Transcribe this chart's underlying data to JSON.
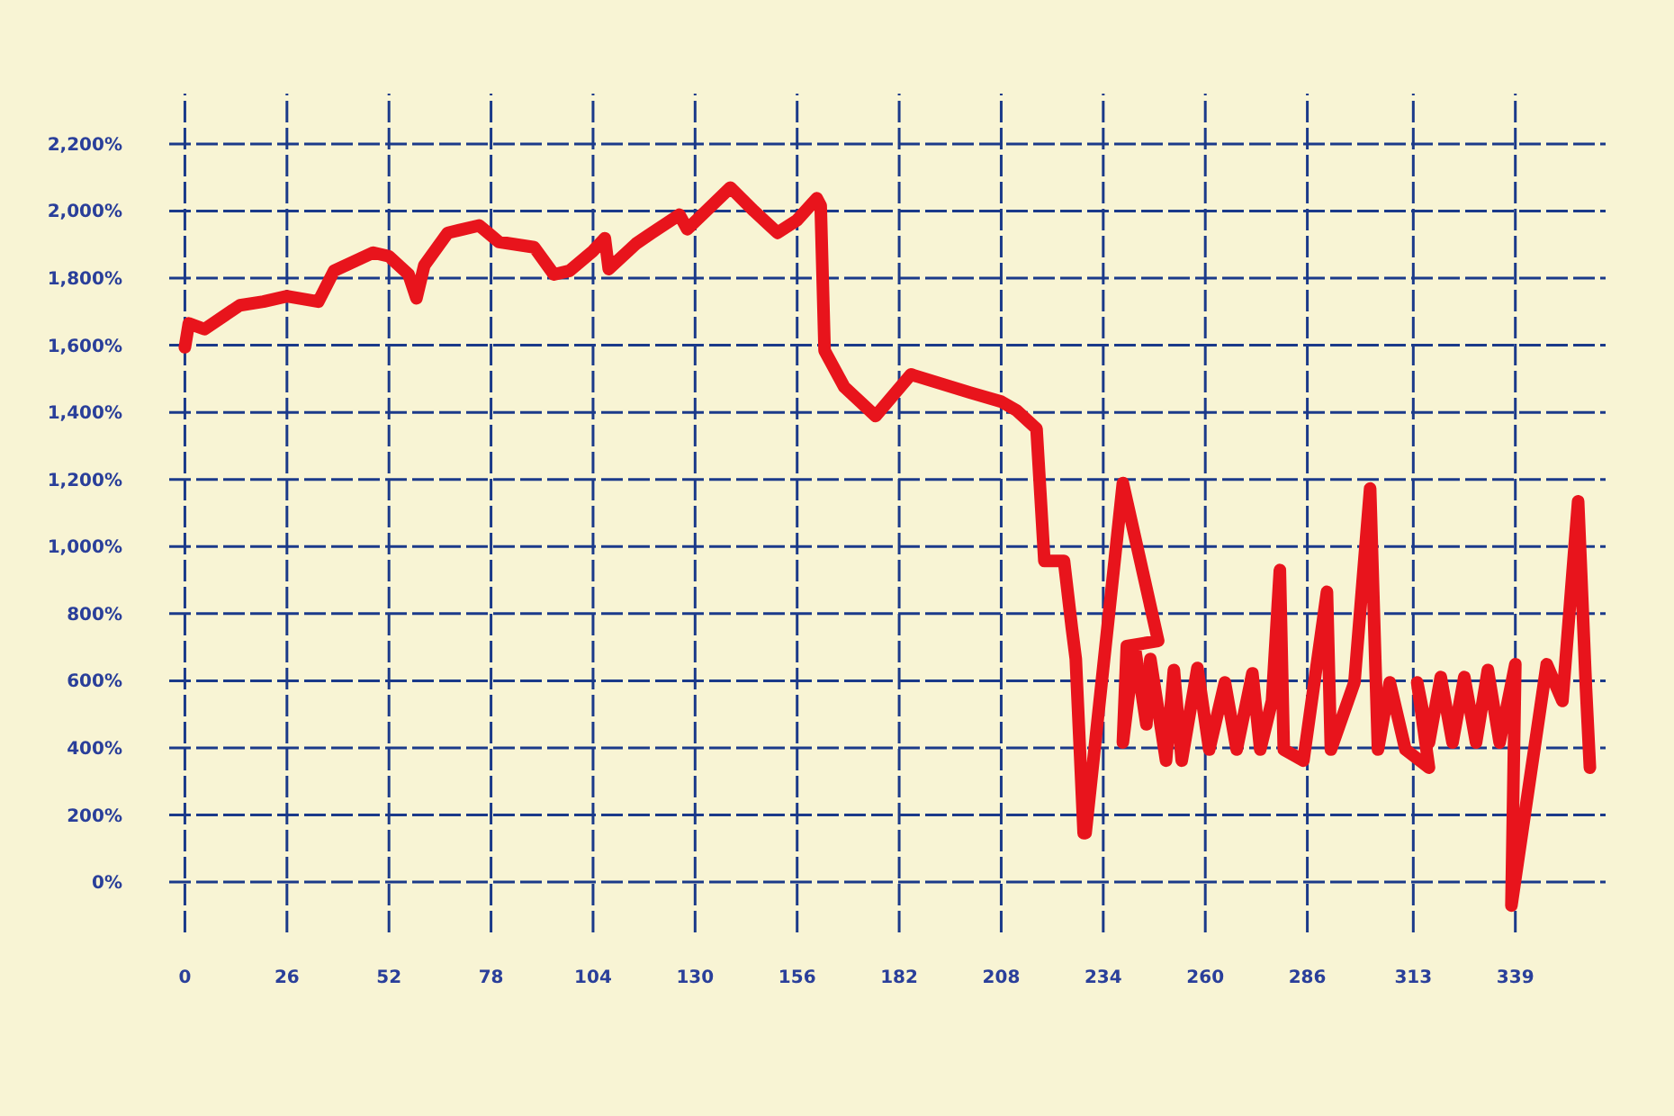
{
  "chart_data": {
    "type": "line",
    "grid": true,
    "line_style": "solid",
    "marker": "none",
    "xlim": [
      -4,
      362
    ],
    "ylim": [
      -150,
      2350
    ],
    "xticks": [
      0,
      26,
      52,
      78,
      104,
      130,
      156,
      182,
      208,
      234,
      260,
      286,
      313,
      339
    ],
    "yticks": [
      {
        "value": 0,
        "label": "0%"
      },
      {
        "value": 200,
        "label": "200%"
      },
      {
        "value": 400,
        "label": "400%"
      },
      {
        "value": 600,
        "label": "600%"
      },
      {
        "value": 800,
        "label": "800%"
      },
      {
        "value": 1000,
        "label": "1,000%"
      },
      {
        "value": 1200,
        "label": "1,200%"
      },
      {
        "value": 1400,
        "label": "1,400%"
      },
      {
        "value": 1600,
        "label": "1,600%"
      },
      {
        "value": 1800,
        "label": "1,800%"
      },
      {
        "value": 2000,
        "label": "2,000%"
      },
      {
        "value": 2200,
        "label": "2,200%"
      }
    ],
    "series": [
      {
        "color": "#e8141c",
        "x": [
          0,
          1,
          5,
          14,
          20,
          26,
          34,
          38,
          48,
          52,
          57,
          59,
          61,
          67,
          75,
          80,
          89,
          94,
          98,
          104,
          107,
          108,
          115,
          119,
          126,
          128,
          139,
          145,
          151,
          156,
          161,
          162,
          163,
          168,
          176,
          185,
          200,
          208,
          212,
          217,
          219,
          224,
          226,
          227,
          229,
          229.5,
          239,
          248,
          240,
          239,
          242,
          245,
          246,
          250,
          252,
          254,
          258,
          261,
          265,
          268,
          272,
          274,
          277,
          279,
          280,
          285,
          291,
          292,
          298,
          302,
          304,
          307,
          311,
          317,
          314,
          317,
          320,
          323,
          326,
          329,
          332,
          335,
          339,
          338,
          347,
          351,
          355,
          357,
          358
        ],
        "values": [
          1594,
          1665,
          1648,
          1719,
          1730,
          1746,
          1730,
          1822,
          1876,
          1865,
          1811,
          1740,
          1838,
          1935,
          1957,
          1908,
          1892,
          1811,
          1822,
          1881,
          1919,
          1827,
          1903,
          1935,
          1989,
          1946,
          2070,
          2000,
          1935,
          1973,
          2038,
          2016,
          1584,
          1476,
          1389,
          1513,
          1459,
          1432,
          1405,
          1351,
          957,
          957,
          757,
          665,
          146,
          146,
          1189,
          719,
          703,
          416,
          703,
          470,
          665,
          362,
          632,
          362,
          638,
          395,
          595,
          395,
          622,
          395,
          540,
          930,
          395,
          362,
          865,
          395,
          595,
          1173,
          395,
          595,
          395,
          341,
          595,
          416,
          611,
          416,
          611,
          416,
          632,
          416,
          649,
          -70,
          649,
          540,
          1135,
          578,
          341
        ]
      }
    ]
  }
}
